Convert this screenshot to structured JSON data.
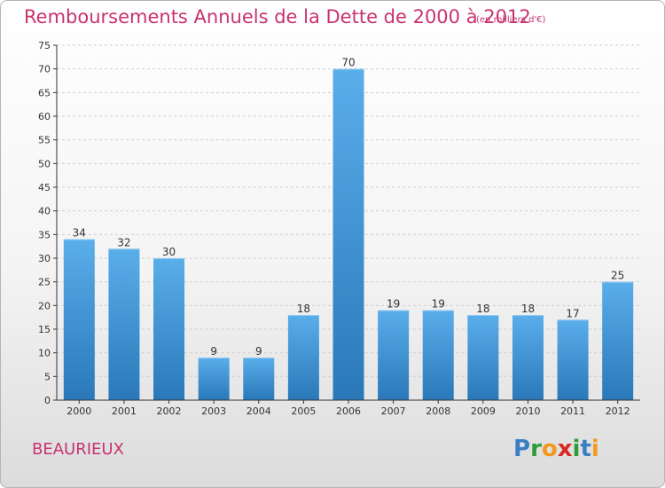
{
  "title": "Remboursements Annuels de la Dette de 2000 à 2012",
  "unit_note": "(en milliers d'€)",
  "commune": "BEAURIEUX",
  "logo": {
    "text": "Proxiti",
    "letters": [
      {
        "ch": "P",
        "color": "#3a7fc4"
      },
      {
        "ch": "r",
        "color": "#2f9c3a"
      },
      {
        "ch": "o",
        "color": "#f29a1c"
      },
      {
        "ch": "x",
        "color": "#d8281f"
      },
      {
        "ch": "i",
        "color": "#2f9c3a"
      },
      {
        "ch": "t",
        "color": "#3a7fc4"
      },
      {
        "ch": "i",
        "color": "#f29a1c"
      }
    ]
  },
  "colors": {
    "accent": "#c8336f",
    "bar_top": "#5aaeea",
    "bar_bottom": "#2a78b8",
    "grid": "#cfcfcf",
    "axis": "#333333"
  },
  "chart_data": {
    "type": "bar",
    "title": "Remboursements Annuels de la Dette de 2000 à 2012",
    "categories": [
      "2000",
      "2001",
      "2002",
      "2003",
      "2004",
      "2005",
      "2006",
      "2007",
      "2008",
      "2009",
      "2010",
      "2011",
      "2012"
    ],
    "values": [
      34,
      32,
      30,
      9,
      9,
      18,
      70,
      19,
      19,
      18,
      18,
      17,
      25
    ],
    "ylim": [
      0,
      75
    ],
    "yticks": [
      0,
      5,
      10,
      15,
      20,
      25,
      30,
      35,
      40,
      45,
      50,
      55,
      60,
      65,
      70,
      75
    ],
    "xlabel": "",
    "ylabel": "",
    "grid": "horizontal dashed",
    "data_labels": true
  }
}
